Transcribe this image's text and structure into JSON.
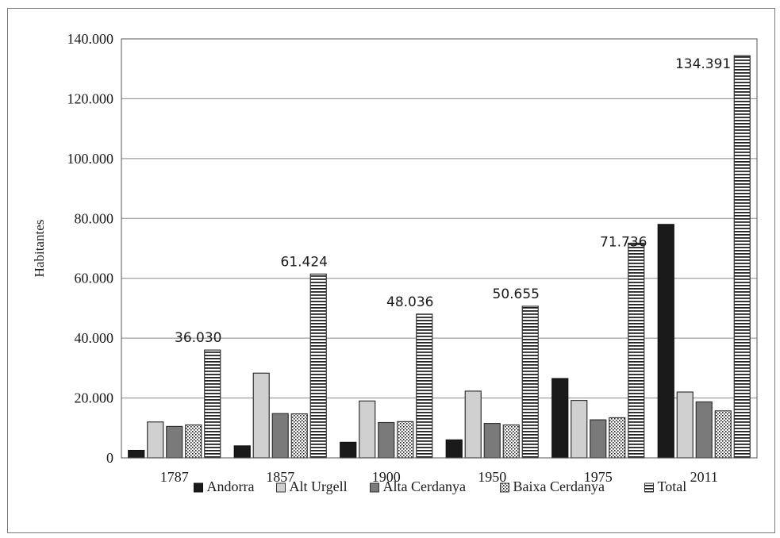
{
  "chart_data": {
    "type": "bar",
    "title": "",
    "xlabel": "",
    "ylabel": "Habitantes",
    "ylim": [
      0,
      140000
    ],
    "y_ticks": [
      "0",
      "20.000",
      "40.000",
      "60.000",
      "80.000",
      "100.000",
      "120.000",
      "140.000"
    ],
    "grid": true,
    "legend_position": "bottom",
    "categories": [
      "1787",
      "1857",
      "1900",
      "1950",
      "1975",
      "2011"
    ],
    "series": [
      {
        "name": "Andorra",
        "pattern": "solid-black",
        "color": "#1a1a1a",
        "values": [
          2500,
          4000,
          5200,
          6000,
          26500,
          78000
        ]
      },
      {
        "name": "Alt Urgell",
        "pattern": "solid-light",
        "color": "#d0d0d0",
        "values": [
          12000,
          28300,
          19000,
          22300,
          19200,
          22000
        ]
      },
      {
        "name": "Alta Cerdanya",
        "pattern": "solid-dark-gray",
        "color": "#7a7a7a",
        "values": [
          10500,
          14800,
          11800,
          11500,
          12700,
          18700
        ]
      },
      {
        "name": "Baixa Cerdanya",
        "pattern": "dotted",
        "color": "#ffffff",
        "values": [
          11000,
          14700,
          12100,
          11000,
          13400,
          15700
        ]
      },
      {
        "name": "Total",
        "pattern": "horizontal-lines",
        "color": "#ffffff",
        "values": [
          36030,
          61424,
          48036,
          50655,
          71736,
          134391
        ]
      }
    ],
    "total_labels": [
      "36.030",
      "61.424",
      "48.036",
      "50.655",
      "71.736",
      "134.391"
    ]
  }
}
